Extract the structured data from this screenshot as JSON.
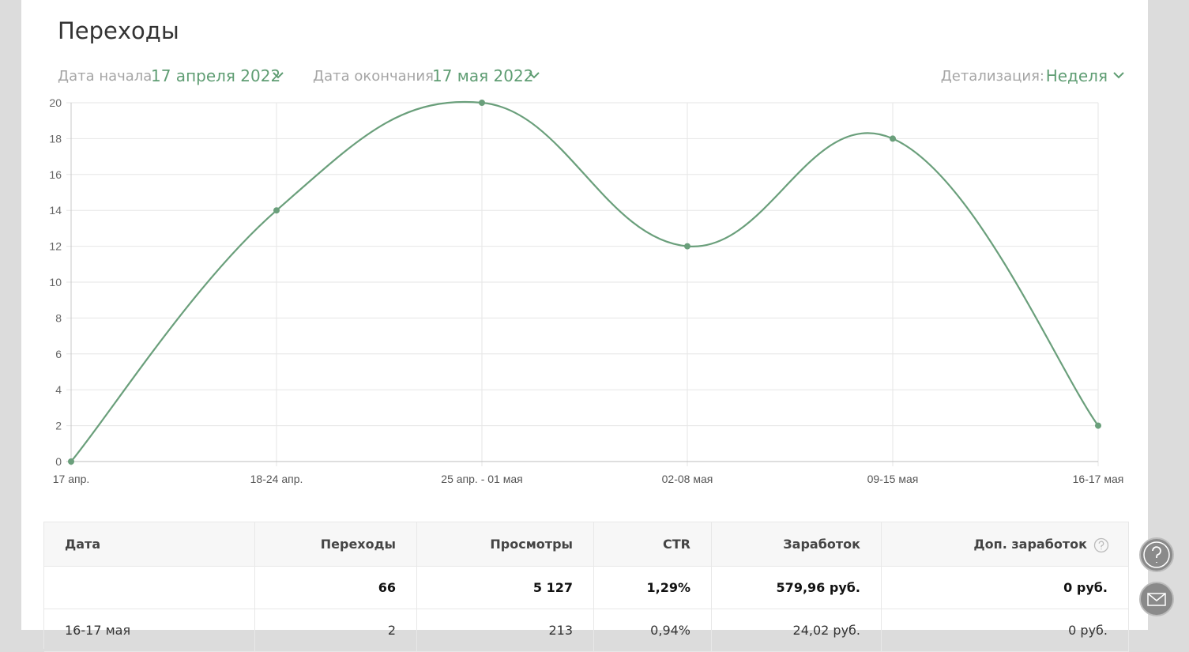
{
  "chart_data": {
    "type": "line",
    "title": "Переходы",
    "categories": [
      "17 апр.",
      "18-24 апр.",
      "25 апр. - 01 мая",
      "02-08 мая",
      "09-15 мая",
      "16-17 мая"
    ],
    "values": [
      0,
      14,
      20,
      12,
      18,
      2
    ],
    "color": "#6a9f7b",
    "ylim": [
      0,
      20
    ],
    "yticks": [
      0,
      2,
      4,
      6,
      8,
      10,
      12,
      14,
      16,
      18,
      20
    ],
    "grid": true
  },
  "filters": {
    "start_label": "Дата начала",
    "start_value": "17 апреля 2022",
    "end_label": "Дата окончания",
    "end_value": "17 мая 2022",
    "detail_label": "Детализация:",
    "detail_value": "Неделя"
  },
  "table": {
    "header": [
      "Дата",
      "Переходы",
      "Просмотры",
      "CTR",
      "Заработок",
      "Доп. заработок"
    ],
    "rows": [
      [
        null,
        "66",
        "5 127",
        "1,29%",
        "579,96 руб.",
        "0 руб."
      ],
      [
        "16-17 мая",
        "2",
        "213",
        "0,94%",
        "24,02 руб.",
        "0 руб."
      ]
    ]
  }
}
